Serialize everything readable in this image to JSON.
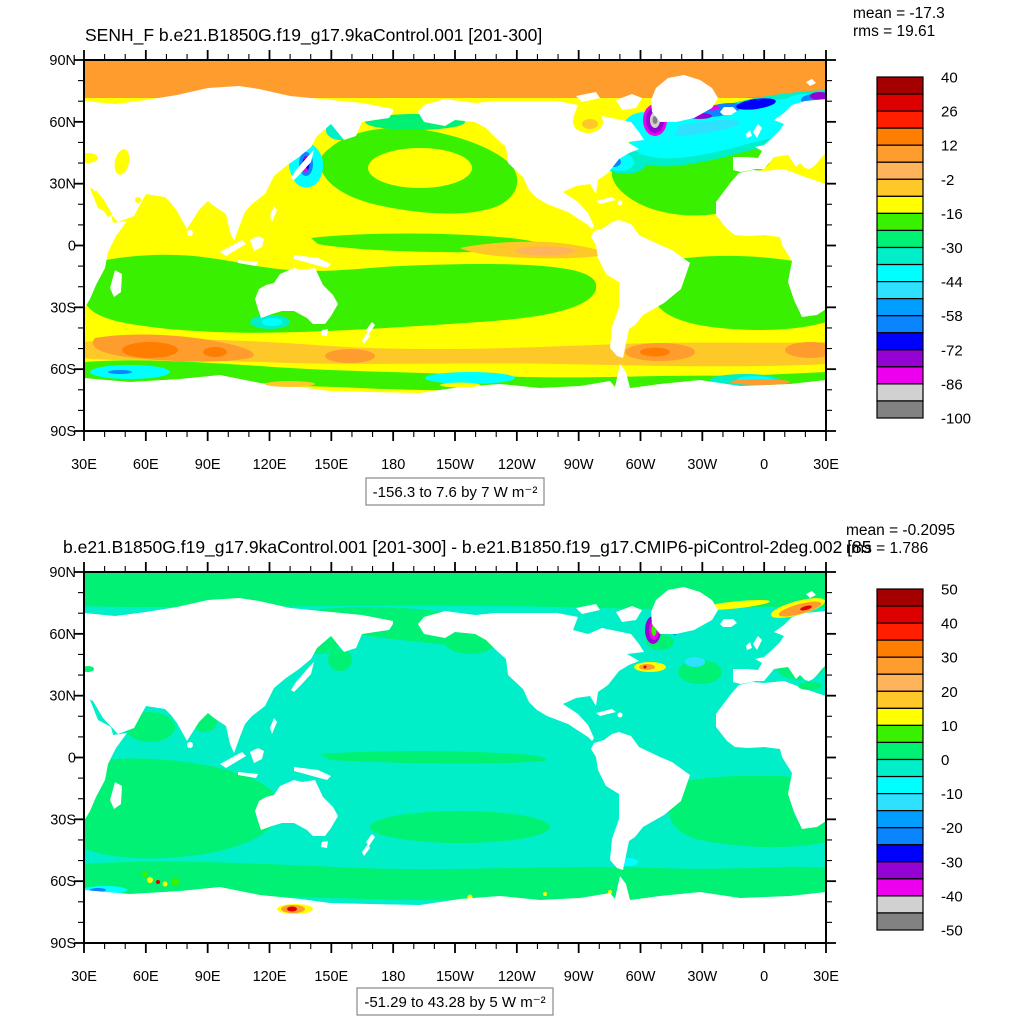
{
  "panels": [
    {
      "title": "SENH_F b.e21.B1850G.f19_g17.9kaControl.001 [201-300]",
      "stats": {
        "mean": "mean = -17.3",
        "rms": "rms = 19.61"
      },
      "caption": "-156.3 to 7.6 by 7  W m⁻²",
      "colorbar": {
        "labels": [
          "40",
          "26",
          "12",
          "-2",
          "-16",
          "-30",
          "-44",
          "-58",
          "-72",
          "-86",
          "-100"
        ],
        "colors": [
          "#a50000",
          "#de0000",
          "#ff1e00",
          "#ff7d00",
          "#ff9c2e",
          "#ffb45c",
          "#ffc829",
          "#ffff00",
          "#38f000",
          "#00f173",
          "#00efc9",
          "#00ffff",
          "#2ee2ff",
          "#009eff",
          "#0b85ff",
          "#0000ff",
          "#9403d1",
          "#ed00ed",
          "#d1d1d1",
          "#828282"
        ]
      }
    },
    {
      "title": "b.e21.B1850G.f19_g17.9kaControl.001 [201-300] - b.e21.B1850.f19_g17.CMIP6-piControl-2deg.002 [85",
      "stats": {
        "mean": "mean = -0.2095",
        "rms": "rms = 1.786"
      },
      "caption": "-51.29 to 43.28 by 5  W m⁻²",
      "colorbar": {
        "labels": [
          "50",
          "40",
          "30",
          "20",
          "10",
          "0",
          "-10",
          "-20",
          "-30",
          "-40",
          "-50"
        ],
        "colors": [
          "#a50000",
          "#de0000",
          "#ff1e00",
          "#ff7d00",
          "#ff9c2e",
          "#ffb45c",
          "#ffc829",
          "#ffff00",
          "#38f000",
          "#00f173",
          "#00efc9",
          "#00ffff",
          "#2ee2ff",
          "#009eff",
          "#0b85ff",
          "#0000ff",
          "#9403d1",
          "#ed00ed",
          "#d1d1d1",
          "#828282"
        ]
      }
    }
  ],
  "axes": {
    "lat_labels": [
      "90N",
      "60N",
      "30N",
      "0",
      "30S",
      "60S",
      "90S"
    ],
    "lon_labels": [
      "30E",
      "60E",
      "90E",
      "120E",
      "150E",
      "180",
      "150W",
      "120W",
      "90W",
      "60W",
      "30W",
      "0",
      "30E"
    ]
  },
  "chart_data": [
    {
      "type": "heatmap",
      "title": "SENH_F b.e21.B1850G.f19_g17.9kaControl.001 [201-300]",
      "variable": "SENH_F",
      "units": "W m⁻²",
      "mean": -17.3,
      "rms": 19.61,
      "data_range_text": "-156.3 to 7.6 by 7  W m⁻²",
      "data_min": -156.3,
      "data_max": 7.6,
      "contour_interval": 7,
      "contour_levels_min": -100,
      "contour_levels_max": 40,
      "labeled_levels": [
        40,
        26,
        12,
        -2,
        -16,
        -30,
        -44,
        -58,
        -72,
        -86,
        -100
      ],
      "projection": "cylindrical equidistant, global, longitudes 30E to 30E",
      "xlabel_ticks": [
        "30E",
        "60E",
        "90E",
        "120E",
        "150E",
        "180",
        "150W",
        "120W",
        "90W",
        "60W",
        "30W",
        "0",
        "30E"
      ],
      "ylabel_ticks": [
        "90N",
        "60N",
        "30N",
        "0",
        "30S",
        "60S",
        "90S"
      ],
      "legend_position": "right vertical colorbar",
      "grid": false,
      "notes": "Ocean-only filled contours; land masked white. Arctic band orange (~-9 to 5); subtropical gyres green (~-30 to -16); tropics yellow (~-16 to -9); strong negative (cyan/blue/purple, -44 to -100) in Kuroshio, Gulf Stream, Labrador/Norwegian Seas; orange patches (~-9 to 5) along 45-55S; green/cyan ring around Antarctica."
    },
    {
      "type": "heatmap",
      "title": "b.e21.B1850G.f19_g17.9kaControl.001 [201-300] - b.e21.B1850.f19_g17.CMIP6-piControl-2deg.002 [85",
      "variable": "SENH_F difference",
      "units": "W m⁻²",
      "mean": -0.2095,
      "rms": 1.786,
      "data_range_text": "-51.29 to 43.28 by 5  W m⁻²",
      "data_min": -51.29,
      "data_max": 43.28,
      "contour_interval": 5,
      "contour_levels_min": -50,
      "contour_levels_max": 50,
      "labeled_levels": [
        50,
        40,
        30,
        20,
        10,
        0,
        -10,
        -20,
        -30,
        -40,
        -50
      ],
      "projection": "cylindrical equidistant, global, longitudes 30E to 30E",
      "xlabel_ticks": [
        "30E",
        "60E",
        "90E",
        "120E",
        "150E",
        "180",
        "150W",
        "120W",
        "90W",
        "60W",
        "30W",
        "0",
        "30E"
      ],
      "ylabel_ticks": [
        "90N",
        "60N",
        "30N",
        "0",
        "30S",
        "60S",
        "90S"
      ],
      "legend_position": "right vertical colorbar",
      "grid": false,
      "notes": "Mostly near-zero: turquoise (-5 to 0) and spring green (0 to 5). Localized anomalies: purple/magenta arc in Davis Strait (~-30 to -45), blue streak SE Greenland, yellow/orange streak Iceland-Norway (+10 to +20), yellow/orange Gulf Stream spot, red spot on Antarctic coast near 170E (+40), small yellow/red dots in S Indian Ocean."
    }
  ]
}
